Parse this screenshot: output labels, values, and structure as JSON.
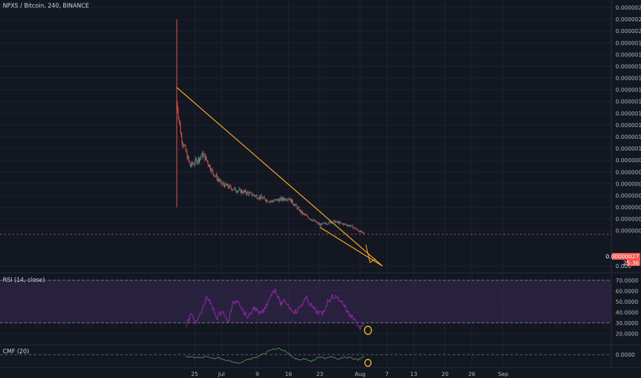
{
  "header": {
    "symbol_title": "NPXS / Bitcoin, 240, BINANCE"
  },
  "colors": {
    "background": "#131722",
    "grid": "#1e2230",
    "up_candle": "#26a69a",
    "down_candle": "#ef5350",
    "trendline": "#f5a623",
    "rsi_line": "#9c27b0",
    "rsi_band": "#3b2a55",
    "cmf_line": "#4e8a4e",
    "price_tag": "#ef5350"
  },
  "chart_data": [
    {
      "type": "candlestick",
      "title": "NPXS / Bitcoin, 240, BINANCE",
      "x_ticks": [
        "25",
        "Jul",
        "9",
        "16",
        "23",
        "Aug",
        "7",
        "13",
        "20",
        "26",
        "Sep"
      ],
      "y_ticks": [
        "0.00000220",
        "0.00000210",
        "0.00000200",
        "0.00000190",
        "0.00000180",
        "0.00000170",
        "0.00000160",
        "0.00000150",
        "0.00000140",
        "0.00000130",
        "0.00000120",
        "0.00000110",
        "0.00000100",
        "0.00000090",
        "0.00000080",
        "0.00000070",
        "0.00000060",
        "0.00000050",
        "0.00000040",
        "0.00000030",
        "0.000"
      ],
      "ylim": [
        0,
        2.2e-06
      ],
      "last_price_label": "0.00000027",
      "countdown_label": "25:36",
      "price_path_approx": [
        {
          "date": "2018-06-21",
          "value": 1.39e-06
        },
        {
          "date": "2018-06-22",
          "value": 1.1e-06
        },
        {
          "date": "2018-06-24",
          "value": 8.5e-07
        },
        {
          "date": "2018-06-27",
          "value": 9.5e-07
        },
        {
          "date": "2018-06-29",
          "value": 8e-07
        },
        {
          "date": "2018-07-01",
          "value": 7e-07
        },
        {
          "date": "2018-07-04",
          "value": 6.5e-07
        },
        {
          "date": "2018-07-07",
          "value": 6.2e-07
        },
        {
          "date": "2018-07-12",
          "value": 5.5e-07
        },
        {
          "date": "2018-07-16",
          "value": 5.8e-07
        },
        {
          "date": "2018-07-19",
          "value": 4.5e-07
        },
        {
          "date": "2018-07-23",
          "value": 3.5e-07
        },
        {
          "date": "2018-07-26",
          "value": 3.8e-07
        },
        {
          "date": "2018-07-30",
          "value": 3.4e-07
        },
        {
          "date": "2018-08-02",
          "value": 2.7e-07
        }
      ],
      "trendlines": [
        {
          "from": {
            "date": "2018-06-21",
            "value": 1.52e-06
          },
          "to": {
            "date": "2018-08-06",
            "value": 0.0
          }
        },
        {
          "from": {
            "date": "2018-07-23",
            "value": 3.3e-07
          },
          "to": {
            "date": "2018-08-06",
            "value": 0.0
          }
        }
      ]
    },
    {
      "type": "line",
      "title": "RSI (14, close)",
      "y_ticks": [
        "70.0000",
        "60.0000",
        "50.0000",
        "40.0000",
        "30.0000",
        "20.0000"
      ],
      "ylim": [
        15,
        75
      ],
      "band": [
        30,
        70
      ],
      "values_approx": [
        25,
        38,
        30,
        40,
        55,
        45,
        35,
        42,
        30,
        48,
        52,
        40,
        35,
        45,
        38,
        42,
        55,
        62,
        48,
        50,
        43,
        40,
        47,
        53,
        45,
        40,
        38,
        50,
        55,
        53,
        48,
        38,
        35,
        25,
        28
      ]
    },
    {
      "type": "line",
      "title": "CMF (20)",
      "y_ticks": [
        "0.0000"
      ],
      "values_approx": [
        -0.05,
        -0.08,
        -0.1,
        -0.06,
        -0.12,
        -0.09,
        -0.15,
        -0.2,
        -0.25,
        -0.18,
        -0.12,
        -0.05,
        0.05,
        0.15,
        0.18,
        0.12,
        -0.05,
        -0.15,
        -0.12,
        -0.2,
        -0.08,
        -0.1,
        -0.05,
        -0.12,
        -0.08,
        -0.1,
        -0.15,
        -0.05
      ]
    }
  ]
}
